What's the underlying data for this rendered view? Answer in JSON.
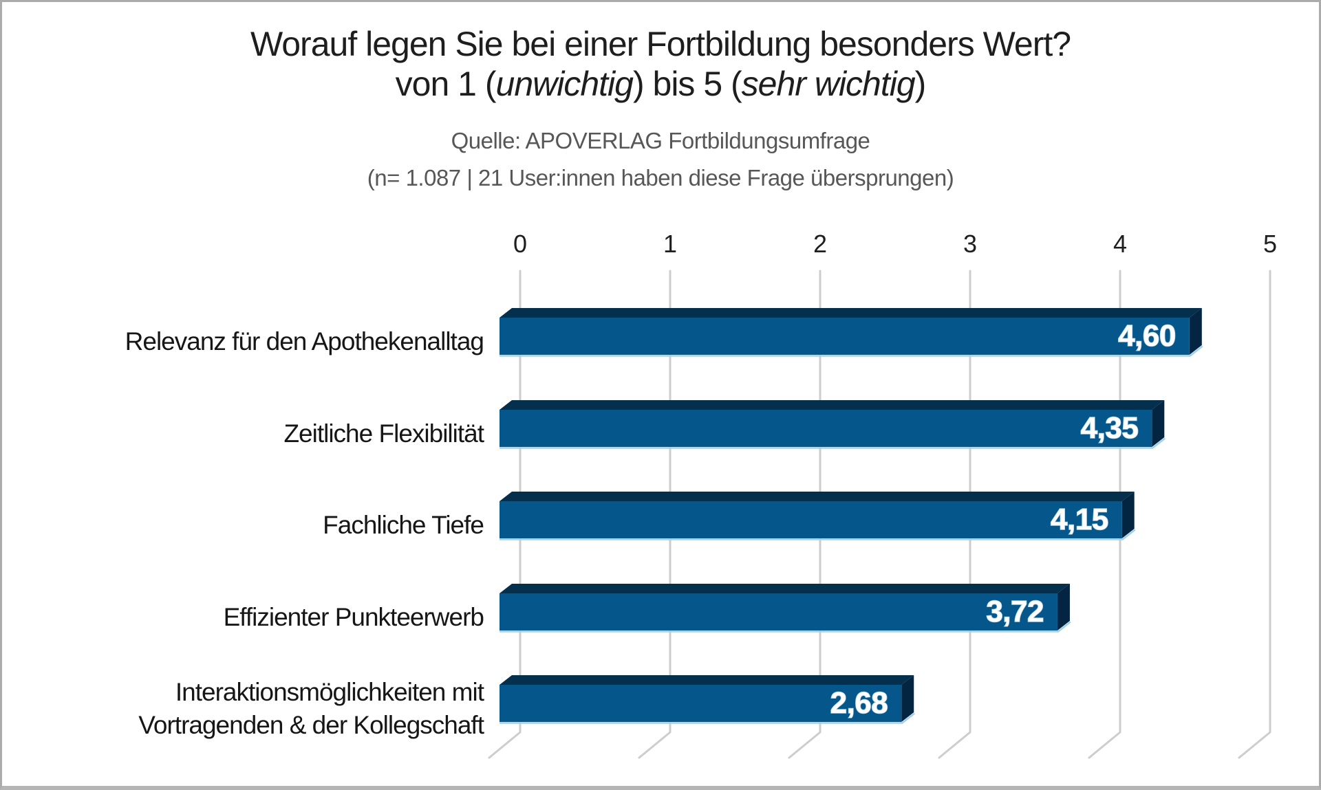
{
  "header": {
    "title_line1": "Worauf legen Sie bei einer Fortbildung besonders Wert?",
    "title_line2": {
      "prefix": "von 1 (",
      "italic1": "unwichtig",
      "mid": ") bis 5 (",
      "italic2": "sehr wichtig",
      "suffix": ")"
    },
    "source_line": "Quelle: APOVERLAG Fortbildungsumfrage",
    "sample_line": "(n= 1.087 | 21 User:innen haben diese Frage übersprungen)"
  },
  "chart_data": {
    "type": "bar",
    "orientation": "horizontal",
    "style": "3d",
    "title": "Worauf legen Sie bei einer Fortbildung besonders Wert? von 1 (unwichtig) bis 5 (sehr wichtig)",
    "categories": [
      "Relevanz für den Apothekenalltag",
      "Zeitliche Flexibilität",
      "Fachliche Tiefe",
      "Effizienter Punkteerwerb",
      "Interaktionsmöglichkeiten mit Vortragenden & der Kollegschaft"
    ],
    "category_lines": [
      [
        "Relevanz für den Apothekenalltag"
      ],
      [
        "Zeitliche Flexibilität"
      ],
      [
        "Fachliche Tiefe"
      ],
      [
        "Effizienter Punkteerwerb"
      ],
      [
        "Interaktionsmöglichkeiten mit",
        "Vortragenden & der Kollegschaft"
      ]
    ],
    "values": [
      4.6,
      4.35,
      4.15,
      3.72,
      2.68
    ],
    "value_labels": [
      "4,60",
      "4,35",
      "4,15",
      "3,72",
      "2,68"
    ],
    "xlim": [
      0,
      5
    ],
    "x_tick_labels": [
      "0",
      "1",
      "2",
      "3",
      "4",
      "5"
    ],
    "grid": true,
    "legend": false,
    "colors": {
      "bar_front": "#05568a",
      "bar_top": "#04304e",
      "bar_side": "#032541",
      "bar_bottom_highlight": "#9fd2e8",
      "gridline": "#cdcdcd",
      "value_label": "#ffffff",
      "value_label_halo": "#a9cfe2",
      "tick_label": "#1f1f1f",
      "category_label": "#161616"
    }
  }
}
